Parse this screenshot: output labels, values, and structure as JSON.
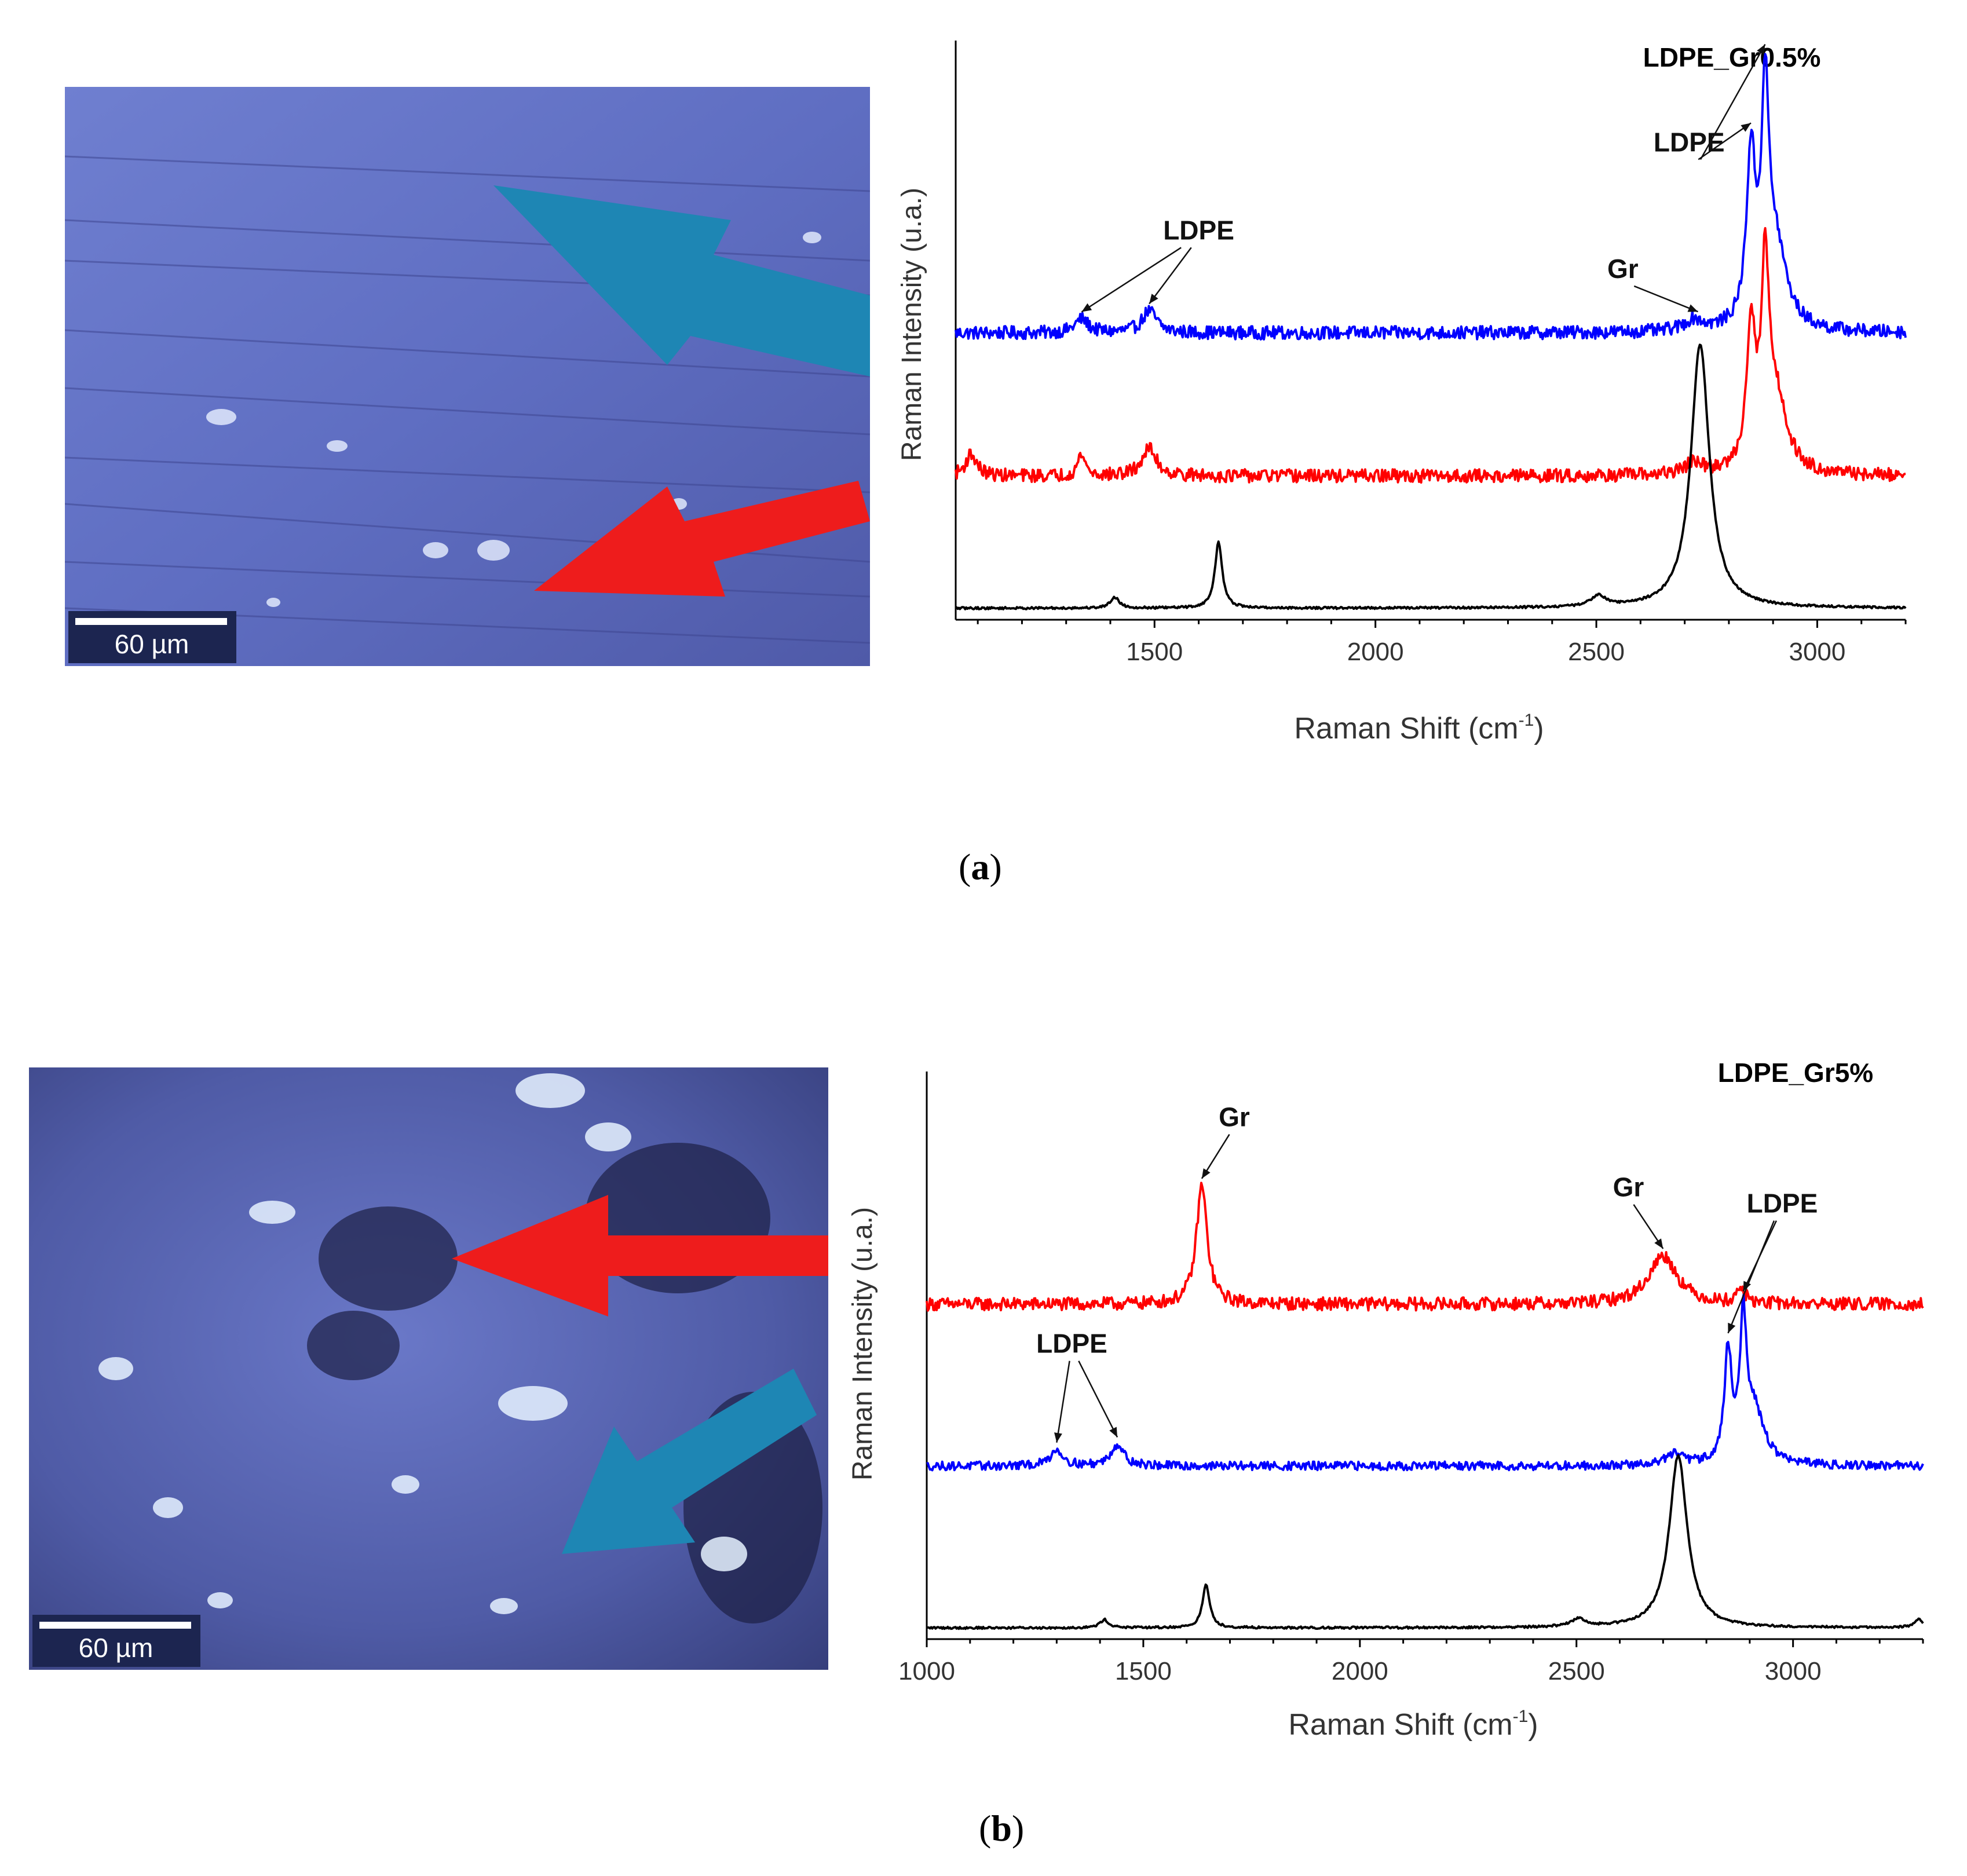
{
  "panels": [
    {
      "id": "a",
      "caption": {
        "open": "(",
        "letter": "a",
        "close": ")"
      },
      "micrograph": {
        "scale_bar": "60 µm",
        "arrows": [
          {
            "color": "#1e86b4"
          },
          {
            "color": "#ee1c1c"
          }
        ]
      },
      "chart_data": {
        "type": "line",
        "title": "LDPE_Gr0.5%",
        "xlabel": "Raman Shift (cm-1)",
        "xlabel_parts": {
          "main": "Raman Shift (cm",
          "sup": "-1",
          "end": ")"
        },
        "ylabel": "Raman Intensity (u.a.)",
        "xlim": [
          1050,
          3200
        ],
        "ylim": [
          0,
          1
        ],
        "xticks": [
          1500,
          2000,
          2500,
          3000
        ],
        "grid": false,
        "annotations": [
          {
            "text": "LDPE",
            "x": 1600,
            "y": 0.67
          },
          {
            "text": "Gr",
            "x": 2560,
            "y": 0.6
          },
          {
            "text": "LDPE",
            "x": 2710,
            "y": 0.83
          }
        ],
        "series": [
          {
            "color": "#0000ff",
            "baseline": 0.5,
            "noise": 0.012,
            "peaks": [
              {
                "x": 1335,
                "h": 0.025,
                "w": 18
              },
              {
                "x": 1488,
                "h": 0.04,
                "w": 20
              },
              {
                "x": 2720,
                "h": 0.02,
                "w": 25
              },
              {
                "x": 2850,
                "h": 0.3,
                "w": 12
              },
              {
                "x": 2882,
                "h": 0.38,
                "w": 10
              },
              {
                "x": 2905,
                "h": 0.15,
                "w": 30
              }
            ]
          },
          {
            "color": "#ff0000",
            "baseline": 0.24,
            "noise": 0.012,
            "peaks": [
              {
                "x": 1085,
                "h": 0.04,
                "w": 15
              },
              {
                "x": 1335,
                "h": 0.04,
                "w": 10
              },
              {
                "x": 1488,
                "h": 0.05,
                "w": 20
              },
              {
                "x": 2720,
                "h": 0.02,
                "w": 25
              },
              {
                "x": 2850,
                "h": 0.25,
                "w": 12
              },
              {
                "x": 2882,
                "h": 0.33,
                "w": 10
              },
              {
                "x": 2905,
                "h": 0.14,
                "w": 30
              }
            ]
          },
          {
            "color": "#000000",
            "baseline": 0.0,
            "noise": 0.002,
            "peaks": [
              {
                "x": 1410,
                "h": 0.02,
                "w": 12
              },
              {
                "x": 1645,
                "h": 0.12,
                "w": 10
              },
              {
                "x": 2505,
                "h": 0.02,
                "w": 20
              },
              {
                "x": 2735,
                "h": 0.48,
                "w": 25
              }
            ]
          }
        ]
      }
    },
    {
      "id": "b",
      "caption": {
        "open": "(",
        "letter": "b",
        "close": ")"
      },
      "micrograph": {
        "scale_bar": "60 µm",
        "arrows": [
          {
            "color": "#ee1c1c"
          },
          {
            "color": "#1e86b4"
          }
        ]
      },
      "chart_data": {
        "type": "line",
        "title": "LDPE_Gr5%",
        "xlabel": "Raman Shift (cm-1)",
        "xlabel_parts": {
          "main": "Raman Shift (cm",
          "sup": "-1",
          "end": ")"
        },
        "ylabel": "Raman Intensity (u.a.)",
        "xlim": [
          1000,
          3300
        ],
        "ylim": [
          0,
          1
        ],
        "xticks": [
          1000,
          1500,
          2000,
          2500,
          3000
        ],
        "grid": false,
        "annotations": [
          {
            "text": "Gr",
            "x": 1710,
            "y": 0.93
          },
          {
            "text": "Gr",
            "x": 2620,
            "y": 0.8
          },
          {
            "text": "LDPE",
            "x": 2975,
            "y": 0.77
          },
          {
            "text": "LDPE",
            "x": 1335,
            "y": 0.51
          }
        ],
        "series": [
          {
            "color": "#ff0000",
            "baseline": 0.6,
            "noise": 0.012,
            "peaks": [
              {
                "x": 1635,
                "h": 0.22,
                "w": 15
              },
              {
                "x": 2700,
                "h": 0.09,
                "w": 40
              },
              {
                "x": 2880,
                "h": 0.03,
                "w": 10
              }
            ]
          },
          {
            "color": "#0000ff",
            "baseline": 0.3,
            "noise": 0.008,
            "peaks": [
              {
                "x": 1300,
                "h": 0.03,
                "w": 18
              },
              {
                "x": 1440,
                "h": 0.04,
                "w": 18
              },
              {
                "x": 2725,
                "h": 0.02,
                "w": 25
              },
              {
                "x": 2850,
                "h": 0.2,
                "w": 10
              },
              {
                "x": 2885,
                "h": 0.24,
                "w": 9
              },
              {
                "x": 2910,
                "h": 0.1,
                "w": 28
              }
            ]
          },
          {
            "color": "#000000",
            "baseline": 0.0,
            "noise": 0.002,
            "peaks": [
              {
                "x": 1410,
                "h": 0.015,
                "w": 12
              },
              {
                "x": 1645,
                "h": 0.08,
                "w": 10
              },
              {
                "x": 2505,
                "h": 0.015,
                "w": 20
              },
              {
                "x": 2735,
                "h": 0.32,
                "w": 25
              },
              {
                "x": 3290,
                "h": 0.015,
                "w": 12
              }
            ]
          }
        ]
      }
    }
  ]
}
